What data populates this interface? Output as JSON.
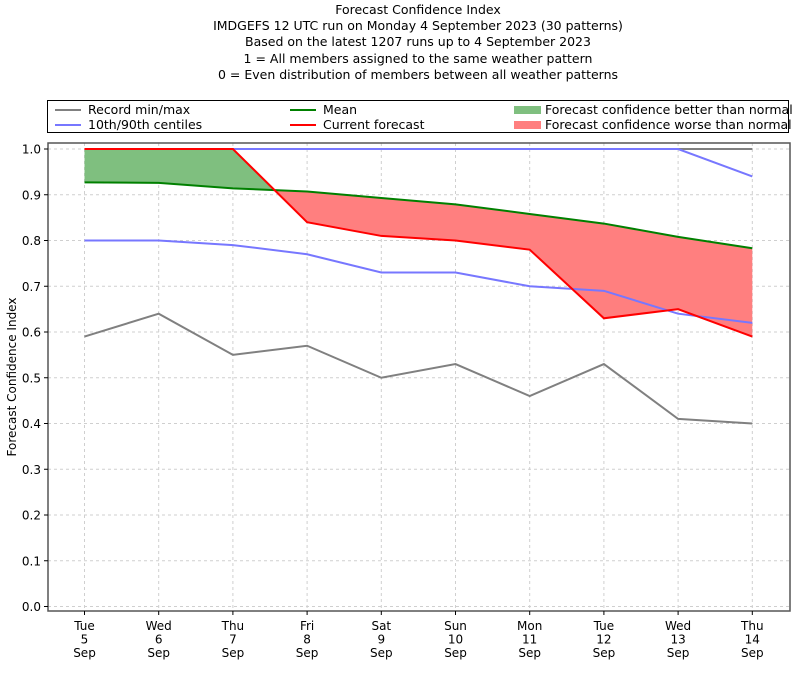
{
  "chart_data": {
    "type": "line",
    "title": "Forecast Confidence Index",
    "subtitle_lines": [
      "IMDGEFS 12 UTC run on Monday 4 September 2023 (30 patterns)",
      "Based on the latest 1207 runs up to 4 September 2023",
      "1 = All members assigned to the same weather pattern",
      "0 = Even distribution of members between all weather patterns"
    ],
    "xlabel": "",
    "ylabel": "Forecast Confidence Index",
    "ylim": [
      0.0,
      1.0
    ],
    "yticks": [
      "0.0",
      "0.1",
      "0.2",
      "0.3",
      "0.4",
      "0.5",
      "0.6",
      "0.7",
      "0.8",
      "0.9",
      "1.0"
    ],
    "ytick_values": [
      0.0,
      0.1,
      0.2,
      0.3,
      0.4,
      0.5,
      0.6,
      0.7,
      0.8,
      0.9,
      1.0
    ],
    "grid": true,
    "legend_position": "top",
    "categories": [
      {
        "dow": "Tue",
        "day": "5",
        "mon": "Sep"
      },
      {
        "dow": "Wed",
        "day": "6",
        "mon": "Sep"
      },
      {
        "dow": "Thu",
        "day": "7",
        "mon": "Sep"
      },
      {
        "dow": "Fri",
        "day": "8",
        "mon": "Sep"
      },
      {
        "dow": "Sat",
        "day": "9",
        "mon": "Sep"
      },
      {
        "dow": "Sun",
        "day": "10",
        "mon": "Sep"
      },
      {
        "dow": "Mon",
        "day": "11",
        "mon": "Sep"
      },
      {
        "dow": "Tue",
        "day": "12",
        "mon": "Sep"
      },
      {
        "dow": "Wed",
        "day": "13",
        "mon": "Sep"
      },
      {
        "dow": "Thu",
        "day": "14",
        "mon": "Sep"
      }
    ],
    "series": [
      {
        "name": "Record min",
        "legend_group": "Record min/max",
        "color": "#808080",
        "values": [
          0.59,
          0.64,
          0.55,
          0.57,
          0.5,
          0.53,
          0.46,
          0.53,
          0.41,
          0.4
        ]
      },
      {
        "name": "Record max",
        "legend_group": "Record min/max",
        "color": "#808080",
        "values": [
          1.0,
          1.0,
          1.0,
          1.0,
          1.0,
          1.0,
          1.0,
          1.0,
          1.0,
          1.0
        ]
      },
      {
        "name": "10th centile",
        "legend_group": "10th/90th centiles",
        "color": "#7777ff",
        "values": [
          0.8,
          0.8,
          0.79,
          0.77,
          0.73,
          0.73,
          0.7,
          0.69,
          0.64,
          0.62
        ]
      },
      {
        "name": "90th centile",
        "legend_group": "10th/90th centiles",
        "color": "#7777ff",
        "values": [
          1.0,
          1.0,
          1.0,
          1.0,
          1.0,
          1.0,
          1.0,
          1.0,
          1.0,
          0.94
        ]
      },
      {
        "name": "Mean",
        "color": "#008000",
        "values": [
          0.927,
          0.926,
          0.914,
          0.907,
          0.893,
          0.879,
          0.858,
          0.837,
          0.808,
          0.783
        ]
      },
      {
        "name": "Current forecast",
        "color": "#ff0000",
        "values": [
          1.0,
          1.0,
          1.0,
          0.84,
          0.81,
          0.8,
          0.78,
          0.63,
          0.65,
          0.59
        ]
      }
    ],
    "fills": [
      {
        "name": "Forecast confidence better than normal",
        "color": "#7fbf7f",
        "between": [
          "Current forecast",
          "Mean"
        ],
        "where": "current > mean"
      },
      {
        "name": "Forecast confidence worse than normal",
        "color": "#ff7f7f",
        "between": [
          "Current forecast",
          "Mean"
        ],
        "where": "current < mean"
      }
    ],
    "legend": [
      {
        "label": "Record min/max",
        "kind": "line",
        "color": "#808080"
      },
      {
        "label": "10th/90th centiles",
        "kind": "line",
        "color": "#7777ff"
      },
      {
        "label": "Mean",
        "kind": "line",
        "color": "#008000"
      },
      {
        "label": "Current forecast",
        "kind": "line",
        "color": "#ff0000"
      },
      {
        "label": "Forecast confidence better than normal",
        "kind": "patch",
        "color": "#7fbf7f"
      },
      {
        "label": "Forecast confidence worse than normal",
        "kind": "patch",
        "color": "#ff7f7f"
      }
    ]
  }
}
